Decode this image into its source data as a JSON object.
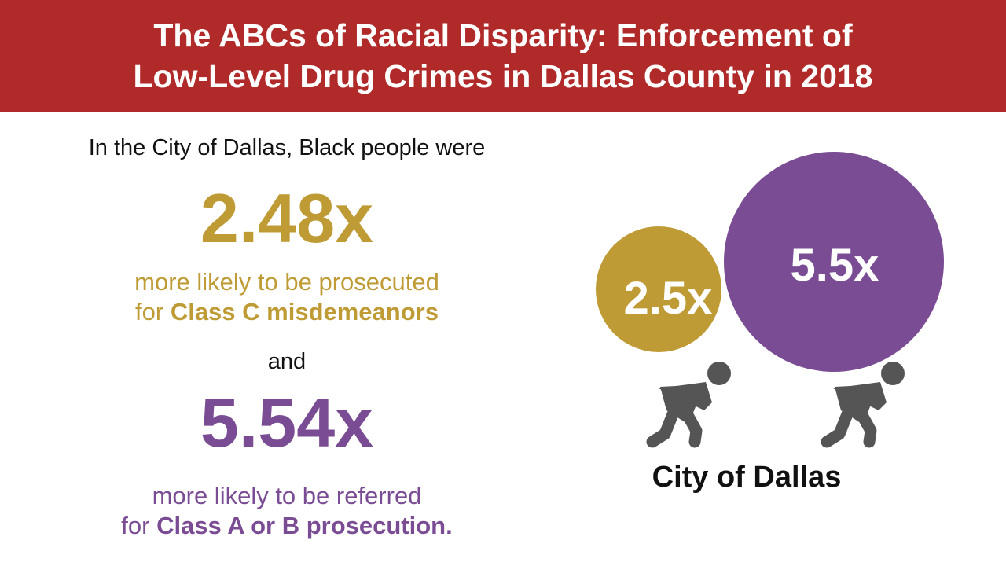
{
  "title": {
    "line1": "The ABCs of Racial Disparity: Enforcement of",
    "line2": "Low-Level Drug Crimes in Dallas County in 2018"
  },
  "stats": {
    "intro": "In the City of Dallas, Black people were",
    "class_c": {
      "value": "2.48x",
      "desc_line1": "more likely to be prosecuted",
      "desc_prefix": "for ",
      "desc_bold": "Class C misdemeanors",
      "color": "#bf9b35"
    },
    "connector": "and",
    "class_ab": {
      "value": "5.54x",
      "desc_line1": "more likely to be referred",
      "desc_prefix": "for ",
      "desc_bold": "Class A or B prosecution.",
      "color": "#7a4c94"
    }
  },
  "graphic": {
    "small_ball_label": "2.5x",
    "large_ball_label": "5.5x",
    "caption": "City of Dallas",
    "small_ball_color": "#bf9b35",
    "large_ball_color": "#7a4c94",
    "figure_color": "#555555",
    "figure_icon": "person-pushing-icon"
  }
}
